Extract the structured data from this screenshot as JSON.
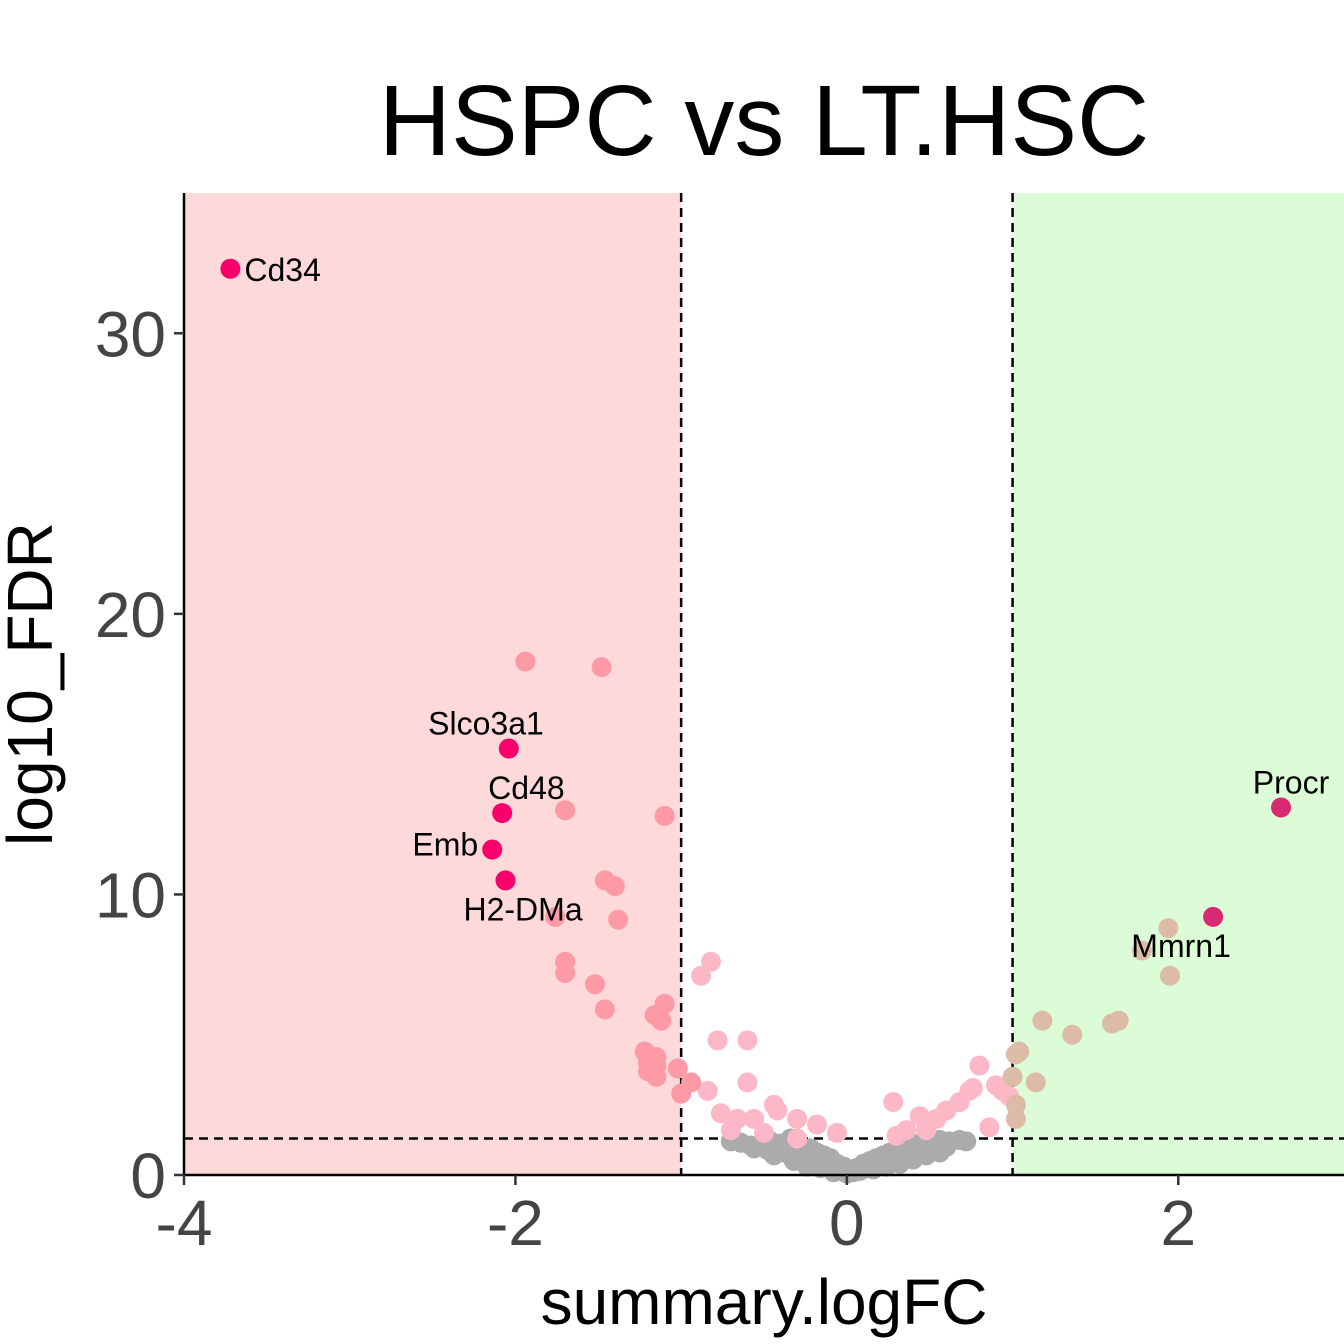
{
  "chart_data": {
    "type": "scatter",
    "title": "HSPC vs LT.HSC",
    "xlabel": "summary.logFC",
    "ylabel": "log10_FDR",
    "xlim": [
      -4,
      3
    ],
    "ylim": [
      0,
      35
    ],
    "xticks": [
      -4,
      -2,
      0,
      2
    ],
    "yticks": [
      0,
      10,
      20,
      30
    ],
    "xtick_labels": [
      "-4",
      "-2",
      "0",
      "2"
    ],
    "ytick_labels": [
      "0",
      "10",
      "20",
      "30"
    ],
    "grid": false,
    "thresholds": {
      "logfc_low": -1,
      "logfc_high": 1,
      "log10_fdr": 1.3
    },
    "regions": [
      {
        "name": "down",
        "x": [
          -4,
          -1
        ],
        "color": "#fdd9d9"
      },
      {
        "name": "up",
        "x": [
          1,
          3
        ],
        "color": "#dcfcd8"
      }
    ],
    "colors": {
      "label": "#f8006c",
      "label_up": "#d82a72",
      "down": "#fd9aa6",
      "down_light": "#fdb8c8",
      "up": "#dcbca6",
      "ns": "#ababab"
    },
    "labeled_points": [
      {
        "label": "Cd34",
        "x": -3.72,
        "y": 32.3,
        "anchor": "start"
      },
      {
        "label": "Slco3a1",
        "x": -2.04,
        "y": 15.2,
        "anchor": "end"
      },
      {
        "label": "Cd48",
        "x": -2.08,
        "y": 12.9,
        "anchor": "start"
      },
      {
        "label": "Emb",
        "x": -2.14,
        "y": 11.6,
        "anchor": "end"
      },
      {
        "label": "H2-DMa",
        "x": -2.06,
        "y": 10.5,
        "anchor": "start"
      },
      {
        "label": "Procr",
        "x": 2.62,
        "y": 13.1,
        "anchor": "middle"
      },
      {
        "label": "Mmrn1",
        "x": 2.21,
        "y": 9.2,
        "anchor": "middle"
      }
    ],
    "series": [
      {
        "category": "down",
        "color": "#fd9aa6",
        "points": [
          [
            -1.94,
            18.3
          ],
          [
            -1.48,
            18.1
          ],
          [
            -1.7,
            13.0
          ],
          [
            -1.1,
            12.8
          ],
          [
            -1.46,
            10.5
          ],
          [
            -1.4,
            10.3
          ],
          [
            -1.38,
            9.1
          ],
          [
            -1.76,
            9.2
          ],
          [
            -1.7,
            7.6
          ],
          [
            -1.7,
            7.2
          ],
          [
            -1.52,
            6.8
          ],
          [
            -1.46,
            5.9
          ],
          [
            -1.1,
            6.1
          ],
          [
            -1.16,
            5.7
          ],
          [
            -1.12,
            5.5
          ],
          [
            -1.22,
            4.4
          ],
          [
            -1.15,
            4.2
          ],
          [
            -1.2,
            4.0
          ],
          [
            -1.15,
            3.9
          ],
          [
            -1.2,
            3.7
          ],
          [
            -1.15,
            3.5
          ],
          [
            -1.02,
            3.8
          ],
          [
            -1.0,
            2.9
          ],
          [
            -0.94,
            3.3
          ]
        ]
      },
      {
        "category": "down_light",
        "color": "#fdb8c8",
        "points": [
          [
            -0.88,
            7.1
          ],
          [
            -0.82,
            7.6
          ],
          [
            -0.78,
            4.8
          ],
          [
            -0.6,
            4.8
          ],
          [
            -0.6,
            3.3
          ],
          [
            -0.84,
            3.0
          ],
          [
            -0.76,
            2.2
          ],
          [
            -0.66,
            2.0
          ],
          [
            -0.56,
            2.0
          ],
          [
            -0.44,
            2.5
          ],
          [
            -0.42,
            2.3
          ],
          [
            -0.3,
            2.0
          ],
          [
            -0.18,
            1.8
          ],
          [
            -0.06,
            1.5
          ],
          [
            -0.7,
            1.6
          ],
          [
            -0.5,
            1.5
          ],
          [
            -0.3,
            1.3
          ],
          [
            0.28,
            2.6
          ],
          [
            0.44,
            2.1
          ],
          [
            0.54,
            2.0
          ],
          [
            0.6,
            2.3
          ],
          [
            0.68,
            2.6
          ],
          [
            0.74,
            3.0
          ],
          [
            0.76,
            3.1
          ],
          [
            0.8,
            3.9
          ],
          [
            0.86,
            1.7
          ],
          [
            0.94,
            3.0
          ],
          [
            0.98,
            2.8
          ],
          [
            0.48,
            1.6
          ],
          [
            0.36,
            1.6
          ],
          [
            0.3,
            1.4
          ],
          [
            0.9,
            3.2
          ]
        ]
      },
      {
        "category": "up",
        "color": "#dcbca6",
        "points": [
          [
            1.02,
            4.3
          ],
          [
            1.04,
            4.4
          ],
          [
            1.0,
            3.5
          ],
          [
            1.02,
            2.5
          ],
          [
            1.02,
            2.0
          ],
          [
            1.14,
            3.3
          ],
          [
            1.18,
            5.5
          ],
          [
            1.36,
            5.0
          ],
          [
            1.6,
            5.4
          ],
          [
            1.64,
            5.5
          ],
          [
            1.78,
            8.0
          ],
          [
            1.94,
            8.8
          ],
          [
            1.95,
            7.1
          ]
        ]
      },
      {
        "category": "ns",
        "color": "#ababab",
        "points": [
          [
            -0.64,
            1.15
          ],
          [
            -0.58,
            1.05
          ],
          [
            -0.52,
            1.1
          ],
          [
            -0.46,
            1.2
          ],
          [
            -0.4,
            1.12
          ],
          [
            -0.34,
            1.3
          ],
          [
            -0.3,
            1.0
          ],
          [
            -0.26,
            0.9
          ],
          [
            -0.22,
            0.95
          ],
          [
            -0.18,
            0.8
          ],
          [
            -0.14,
            0.7
          ],
          [
            -0.1,
            0.6
          ],
          [
            -0.06,
            0.4
          ],
          [
            -0.02,
            0.3
          ],
          [
            0.02,
            0.2
          ],
          [
            0.06,
            0.25
          ],
          [
            0.1,
            0.4
          ],
          [
            0.14,
            0.5
          ],
          [
            0.18,
            0.6
          ],
          [
            0.22,
            0.7
          ],
          [
            0.26,
            0.8
          ],
          [
            0.3,
            0.9
          ],
          [
            0.34,
            1.0
          ],
          [
            0.38,
            1.05
          ],
          [
            0.42,
            1.1
          ],
          [
            0.46,
            1.15
          ],
          [
            0.5,
            1.2
          ],
          [
            0.56,
            1.25
          ],
          [
            0.62,
            1.2
          ],
          [
            0.68,
            1.25
          ],
          [
            0.72,
            1.2
          ],
          [
            -0.7,
            1.2
          ],
          [
            -0.48,
            0.9
          ],
          [
            -0.38,
            0.8
          ],
          [
            -0.28,
            0.6
          ],
          [
            -0.2,
            0.5
          ],
          [
            -0.12,
            0.35
          ],
          [
            -0.04,
            0.15
          ],
          [
            0.04,
            0.1
          ],
          [
            0.12,
            0.25
          ],
          [
            0.2,
            0.35
          ],
          [
            0.28,
            0.5
          ],
          [
            0.36,
            0.65
          ],
          [
            0.44,
            0.8
          ],
          [
            0.52,
            0.95
          ],
          [
            0.6,
            1.0
          ],
          [
            -0.56,
            0.95
          ],
          [
            -0.44,
            0.7
          ],
          [
            -0.32,
            0.5
          ],
          [
            -0.16,
            0.25
          ],
          [
            0.0,
            0.05
          ],
          [
            0.16,
            0.2
          ],
          [
            0.32,
            0.4
          ],
          [
            0.4,
            0.55
          ],
          [
            0.48,
            0.7
          ],
          [
            0.56,
            0.8
          ],
          [
            -0.24,
            0.3
          ],
          [
            -0.08,
            0.1
          ],
          [
            0.08,
            0.15
          ],
          [
            0.24,
            0.3
          ]
        ]
      }
    ]
  }
}
